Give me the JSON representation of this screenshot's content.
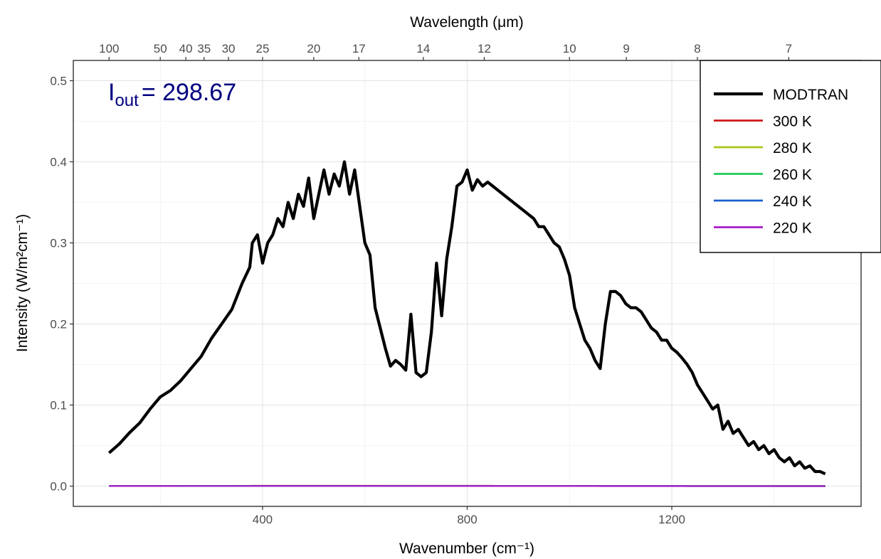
{
  "chart_data": {
    "type": "line",
    "xlabel": "Wavenumber (cm⁻¹)",
    "ylabel": "Intensity (W/m²cm⁻¹)",
    "top_axis_label": "Wavelength (μm)",
    "annotation": {
      "base": "I",
      "subscript": "out",
      "text": "= 298.67",
      "color": "#000080"
    },
    "xlim": [
      100,
      1500
    ],
    "ylim": [
      0,
      0.5
    ],
    "x_ticks": [
      400,
      800,
      1200
    ],
    "y_ticks": [
      0.0,
      0.1,
      0.2,
      0.3,
      0.4,
      0.5
    ],
    "y_tick_labels": [
      "0.0",
      "0.1",
      "0.2",
      "0.3",
      "0.4",
      "0.5"
    ],
    "top_ticks": [
      100,
      50,
      40,
      35,
      30,
      25,
      20,
      17,
      14,
      12,
      10,
      9,
      8,
      7
    ],
    "grid": true,
    "legend_position": "top-right",
    "series": [
      {
        "name": "MODTRAN",
        "color": "#000000",
        "kind": "measured",
        "points": [
          [
            100,
            0.041
          ],
          [
            120,
            0.052
          ],
          [
            140,
            0.066
          ],
          [
            160,
            0.078
          ],
          [
            180,
            0.095
          ],
          [
            200,
            0.11
          ],
          [
            220,
            0.118
          ],
          [
            240,
            0.13
          ],
          [
            260,
            0.145
          ],
          [
            280,
            0.16
          ],
          [
            300,
            0.182
          ],
          [
            320,
            0.2
          ],
          [
            340,
            0.218
          ],
          [
            360,
            0.25
          ],
          [
            375,
            0.27
          ],
          [
            380,
            0.3
          ],
          [
            390,
            0.31
          ],
          [
            400,
            0.275
          ],
          [
            410,
            0.3
          ],
          [
            420,
            0.31
          ],
          [
            430,
            0.33
          ],
          [
            440,
            0.32
          ],
          [
            450,
            0.35
          ],
          [
            460,
            0.33
          ],
          [
            470,
            0.36
          ],
          [
            480,
            0.345
          ],
          [
            490,
            0.38
          ],
          [
            500,
            0.33
          ],
          [
            510,
            0.36
          ],
          [
            520,
            0.39
          ],
          [
            530,
            0.36
          ],
          [
            540,
            0.385
          ],
          [
            550,
            0.37
          ],
          [
            560,
            0.4
          ],
          [
            570,
            0.36
          ],
          [
            580,
            0.39
          ],
          [
            590,
            0.345
          ],
          [
            600,
            0.3
          ],
          [
            610,
            0.285
          ],
          [
            620,
            0.22
          ],
          [
            630,
            0.195
          ],
          [
            640,
            0.17
          ],
          [
            650,
            0.148
          ],
          [
            660,
            0.155
          ],
          [
            670,
            0.15
          ],
          [
            680,
            0.143
          ],
          [
            690,
            0.212
          ],
          [
            700,
            0.14
          ],
          [
            710,
            0.135
          ],
          [
            720,
            0.14
          ],
          [
            730,
            0.19
          ],
          [
            740,
            0.275
          ],
          [
            750,
            0.21
          ],
          [
            760,
            0.28
          ],
          [
            770,
            0.32
          ],
          [
            780,
            0.37
          ],
          [
            790,
            0.375
          ],
          [
            800,
            0.39
          ],
          [
            810,
            0.365
          ],
          [
            820,
            0.378
          ],
          [
            830,
            0.37
          ],
          [
            840,
            0.375
          ],
          [
            850,
            0.37
          ],
          [
            860,
            0.365
          ],
          [
            870,
            0.36
          ],
          [
            880,
            0.355
          ],
          [
            890,
            0.35
          ],
          [
            900,
            0.345
          ],
          [
            910,
            0.34
          ],
          [
            920,
            0.335
          ],
          [
            930,
            0.33
          ],
          [
            940,
            0.32
          ],
          [
            950,
            0.32
          ],
          [
            960,
            0.31
          ],
          [
            970,
            0.3
          ],
          [
            980,
            0.295
          ],
          [
            990,
            0.28
          ],
          [
            1000,
            0.26
          ],
          [
            1010,
            0.22
          ],
          [
            1020,
            0.2
          ],
          [
            1030,
            0.18
          ],
          [
            1040,
            0.17
          ],
          [
            1050,
            0.155
          ],
          [
            1060,
            0.145
          ],
          [
            1070,
            0.2
          ],
          [
            1080,
            0.24
          ],
          [
            1090,
            0.24
          ],
          [
            1100,
            0.235
          ],
          [
            1110,
            0.225
          ],
          [
            1120,
            0.22
          ],
          [
            1130,
            0.22
          ],
          [
            1140,
            0.215
          ],
          [
            1150,
            0.205
          ],
          [
            1160,
            0.195
          ],
          [
            1170,
            0.19
          ],
          [
            1180,
            0.18
          ],
          [
            1190,
            0.18
          ],
          [
            1200,
            0.17
          ],
          [
            1210,
            0.165
          ],
          [
            1220,
            0.158
          ],
          [
            1230,
            0.15
          ],
          [
            1240,
            0.14
          ],
          [
            1250,
            0.125
          ],
          [
            1260,
            0.115
          ],
          [
            1270,
            0.105
          ],
          [
            1280,
            0.095
          ],
          [
            1290,
            0.1
          ],
          [
            1300,
            0.07
          ],
          [
            1310,
            0.08
          ],
          [
            1320,
            0.065
          ],
          [
            1330,
            0.07
          ],
          [
            1340,
            0.06
          ],
          [
            1350,
            0.05
          ],
          [
            1360,
            0.055
          ],
          [
            1370,
            0.045
          ],
          [
            1380,
            0.05
          ],
          [
            1390,
            0.04
          ],
          [
            1400,
            0.045
          ],
          [
            1410,
            0.035
          ],
          [
            1420,
            0.03
          ],
          [
            1430,
            0.035
          ],
          [
            1440,
            0.025
          ],
          [
            1450,
            0.03
          ],
          [
            1460,
            0.022
          ],
          [
            1470,
            0.025
          ],
          [
            1480,
            0.018
          ],
          [
            1490,
            0.018
          ],
          [
            1500,
            0.015
          ]
        ]
      },
      {
        "name": "300 K",
        "color": "#cc1a1a",
        "kind": "planck",
        "temperature": 300
      },
      {
        "name": "280 K",
        "color": "#a8c81a",
        "kind": "planck",
        "temperature": 280
      },
      {
        "name": "260 K",
        "color": "#1ecc5a",
        "kind": "planck",
        "temperature": 260
      },
      {
        "name": "240 K",
        "color": "#1a5fcc",
        "kind": "planck",
        "temperature": 240
      },
      {
        "name": "220 K",
        "color": "#a81ac8",
        "kind": "planck",
        "temperature": 220
      }
    ]
  }
}
